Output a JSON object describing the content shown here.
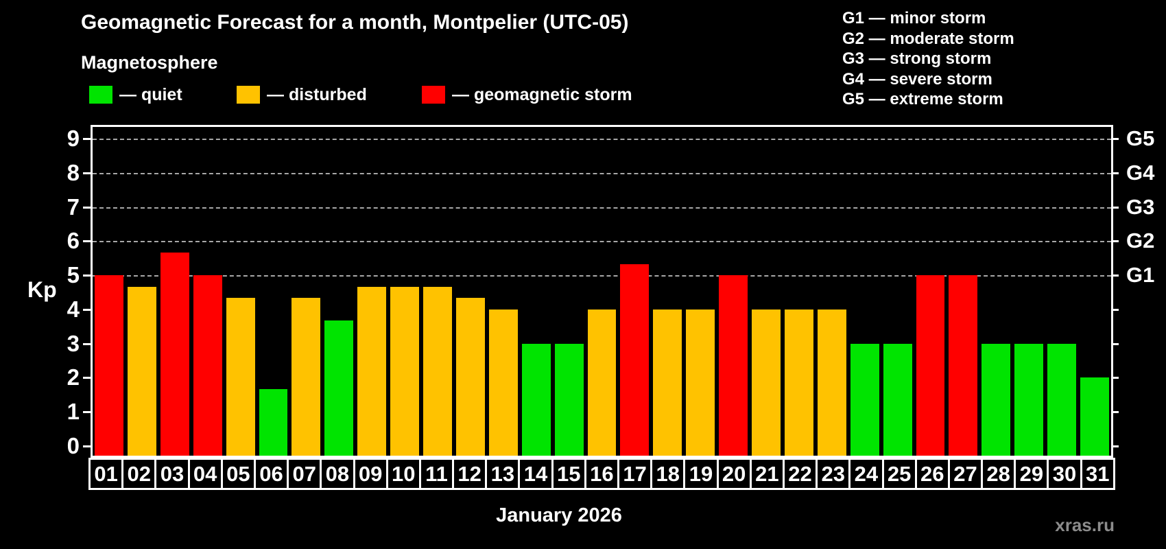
{
  "header": {
    "title": "Geomagnetic Forecast for a month, Montpelier (UTC-05)",
    "subtitle": "Magnetosphere"
  },
  "legend": {
    "items": [
      {
        "status": "quiet",
        "label": "— quiet",
        "color": "#00e400"
      },
      {
        "status": "disturbed",
        "label": "— disturbed",
        "color": "#ffc200"
      },
      {
        "status": "storm",
        "label": "— geomagnetic storm",
        "color": "#ff0000"
      }
    ]
  },
  "storm_scale_legend": {
    "items": [
      "G1 — minor storm",
      "G2 — moderate storm",
      "G3 — strong storm",
      "G4 — severe storm",
      "G5 — extreme storm"
    ]
  },
  "chart_data": {
    "type": "bar",
    "title": "Geomagnetic Forecast for a month, Montpelier (UTC-05)",
    "xlabel": "January 2026",
    "ylabel": "Kp",
    "ylim": [
      0,
      9.4
    ],
    "grid": "horizontal dashed lines at Kp 5,6,7,8,9 only",
    "legend_position": "top-left",
    "left_axis_ticks": [
      0,
      1,
      2,
      3,
      4,
      5,
      6,
      7,
      8,
      9
    ],
    "right_axis_labels": [
      {
        "kp": 5,
        "label": "G1"
      },
      {
        "kp": 6,
        "label": "G2"
      },
      {
        "kp": 7,
        "label": "G3"
      },
      {
        "kp": 8,
        "label": "G4"
      },
      {
        "kp": 9,
        "label": "G5"
      }
    ],
    "categories": [
      "01",
      "02",
      "03",
      "04",
      "05",
      "06",
      "07",
      "08",
      "09",
      "10",
      "11",
      "12",
      "13",
      "14",
      "15",
      "16",
      "17",
      "18",
      "19",
      "20",
      "21",
      "22",
      "23",
      "24",
      "25",
      "26",
      "27",
      "28",
      "29",
      "30",
      "31"
    ],
    "series": [
      {
        "name": "Kp forecast",
        "values": [
          5.0,
          4.67,
          5.67,
          5.0,
          4.33,
          1.67,
          4.33,
          3.67,
          4.67,
          4.67,
          4.67,
          4.33,
          4.0,
          3.0,
          3.0,
          4.0,
          5.33,
          4.0,
          4.0,
          5.0,
          4.0,
          4.0,
          4.0,
          3.0,
          3.0,
          5.0,
          5.0,
          3.0,
          3.0,
          3.0,
          2.0
        ]
      }
    ],
    "statuses": [
      "storm",
      "disturbed",
      "storm",
      "storm",
      "disturbed",
      "quiet",
      "disturbed",
      "quiet",
      "disturbed",
      "disturbed",
      "disturbed",
      "disturbed",
      "disturbed",
      "quiet",
      "quiet",
      "disturbed",
      "storm",
      "disturbed",
      "disturbed",
      "storm",
      "disturbed",
      "disturbed",
      "disturbed",
      "quiet",
      "quiet",
      "storm",
      "storm",
      "quiet",
      "quiet",
      "quiet",
      "quiet"
    ],
    "colors": {
      "quiet": "#00e400",
      "disturbed": "#ffc200",
      "storm": "#ff0000"
    }
  },
  "footer": {
    "month_label": "January 2026",
    "watermark": "xras.ru"
  }
}
